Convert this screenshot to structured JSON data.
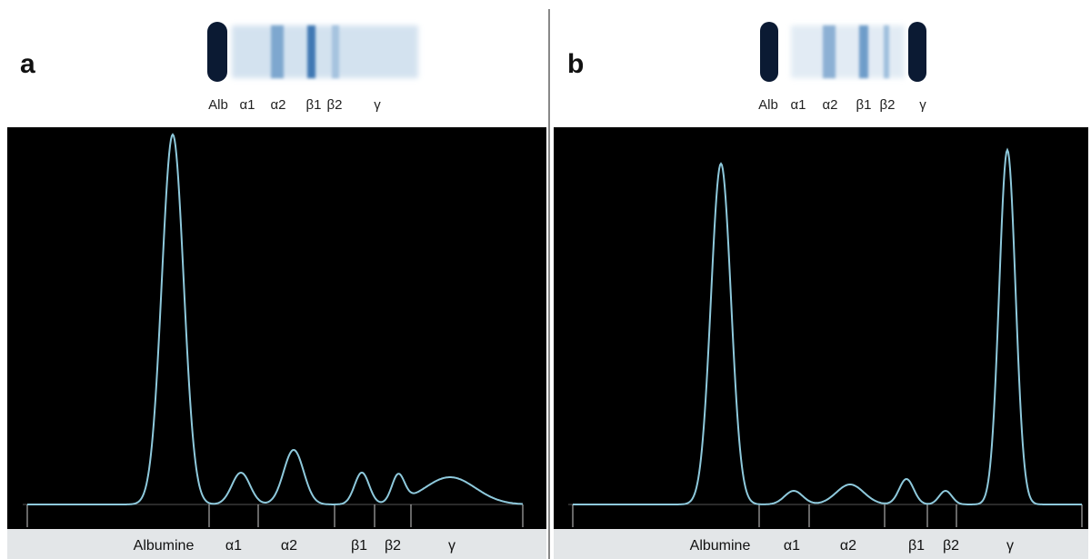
{
  "panels": [
    {
      "label": "a",
      "gel_labels": [
        "Alb",
        "α1",
        "α2",
        "β1",
        "β2",
        "γ"
      ],
      "fractions": [
        "Albumine",
        "α1",
        "α2",
        "β1",
        "β2",
        "γ"
      ]
    },
    {
      "label": "b",
      "gel_labels": [
        "Alb",
        "α1",
        "α2",
        "β1",
        "β2",
        "γ"
      ],
      "fractions": [
        "Albumine",
        "α1",
        "α2",
        "β1",
        "β2",
        "γ"
      ]
    }
  ]
}
